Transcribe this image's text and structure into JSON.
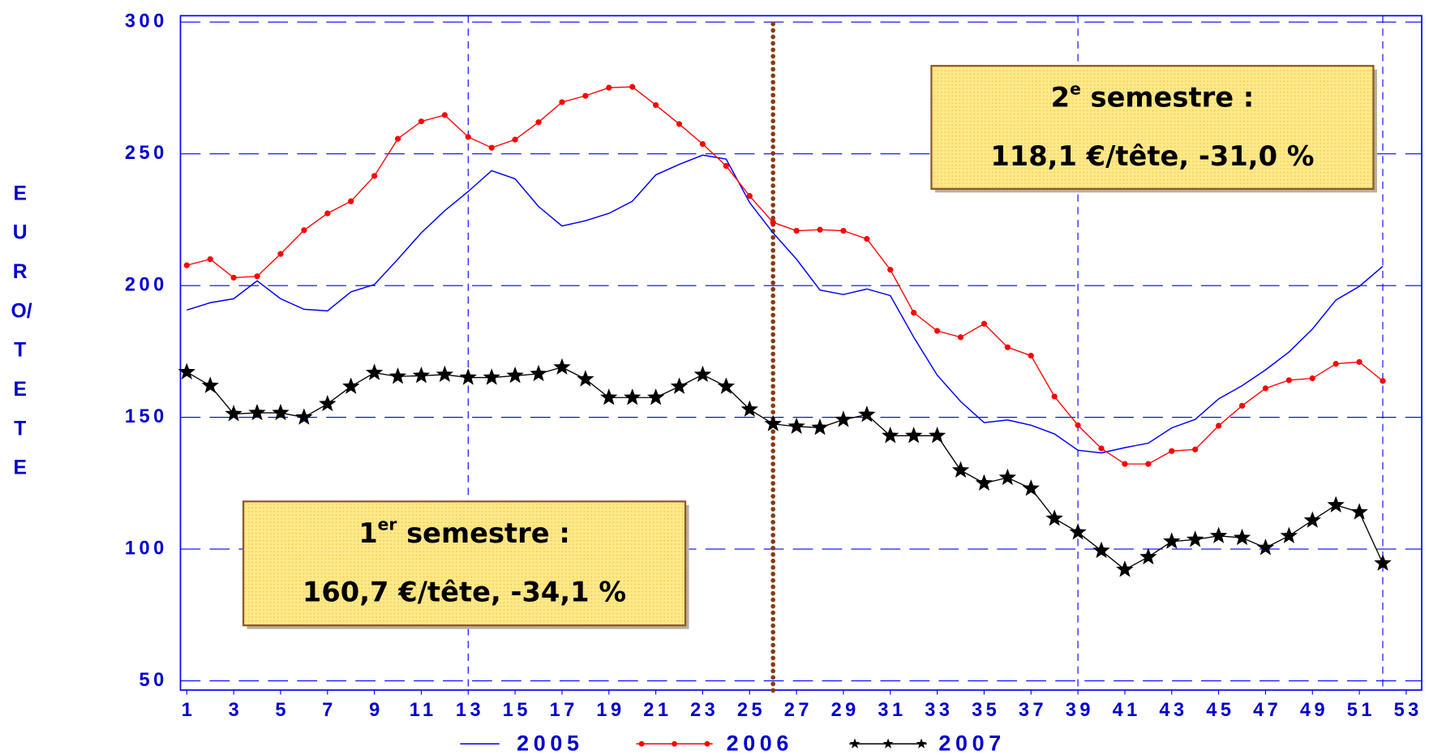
{
  "chart_data": {
    "type": "line",
    "y_label": "EURO/TETE",
    "x": [
      1,
      2,
      3,
      4,
      5,
      6,
      7,
      8,
      9,
      10,
      11,
      12,
      13,
      14,
      15,
      16,
      17,
      18,
      19,
      20,
      21,
      22,
      23,
      24,
      25,
      26,
      27,
      28,
      29,
      30,
      31,
      32,
      33,
      34,
      35,
      36,
      37,
      38,
      39,
      40,
      41,
      42,
      43,
      44,
      45,
      46,
      47,
      48,
      49,
      50,
      51,
      52
    ],
    "series": [
      {
        "name": "2005",
        "color": "#0000ff",
        "marker": "none",
        "values": [
          190.7,
          193.5,
          195,
          201.8,
          195,
          191,
          190.4,
          197.6,
          200.4,
          210,
          220,
          228.4,
          235.7,
          243.6,
          240.5,
          230,
          222.6,
          224.6,
          227.4,
          232,
          242,
          246,
          249.5,
          248,
          231.5,
          220,
          210,
          198.3,
          196.6,
          198.7,
          196.2,
          180.4,
          166,
          156,
          148,
          149,
          147,
          143.7,
          137.5,
          136.5,
          138.5,
          140.2,
          146,
          149.2,
          157,
          162,
          168,
          174.8,
          183.5,
          194.5,
          199.7,
          207.3
        ]
      },
      {
        "name": "2006",
        "color": "#ff0000",
        "marker": "dot",
        "values": [
          207.7,
          210,
          203,
          203.5,
          212,
          221,
          227.4,
          232,
          241.6,
          255.7,
          262.3,
          264.7,
          256.4,
          252.3,
          255.4,
          262,
          269.6,
          272,
          275.1,
          275.4,
          268.5,
          261.3,
          253.7,
          245.4,
          234,
          224,
          220.8,
          221.2,
          220.8,
          217.7,
          206,
          189.7,
          182.8,
          180.4,
          185.5,
          176.6,
          173.4,
          157.9,
          147,
          138.2,
          132.3,
          132.3,
          137.2,
          137.8,
          146.8,
          154.4,
          161,
          164.1,
          164.8,
          170.3,
          171,
          163.8
        ]
      },
      {
        "name": "2007",
        "color": "#000000",
        "marker": "star",
        "values": [
          167.2,
          162,
          151.3,
          151.7,
          151.7,
          150,
          155.1,
          161.7,
          166.9,
          165.5,
          165.8,
          166.2,
          165.1,
          165.1,
          165.8,
          166.5,
          169,
          164.5,
          157.5,
          157.5,
          157.5,
          161.7,
          166.2,
          161.7,
          153,
          147.5,
          146.5,
          146.1,
          149.1,
          151,
          143,
          143,
          143,
          129.9,
          125,
          127.1,
          123,
          111.6,
          106.4,
          99.4,
          92.2,
          97,
          102.9,
          103.6,
          105,
          104.3,
          100.5,
          105,
          110.9,
          116.7,
          114,
          94.6
        ]
      }
    ],
    "xlim": [
      0.73,
      53.66
    ],
    "xticks": [
      1,
      3,
      5,
      7,
      9,
      11,
      13,
      15,
      17,
      19,
      21,
      23,
      25,
      27,
      29,
      31,
      33,
      35,
      37,
      39,
      41,
      43,
      45,
      47,
      49,
      51,
      53
    ],
    "ylim": [
      46.5,
      302.4
    ],
    "yticks": [
      50,
      100,
      150,
      200,
      250,
      300
    ],
    "grid": true,
    "x_grid": [
      13,
      39,
      52
    ],
    "vline": {
      "x": 26,
      "color": "#8b3a0f"
    },
    "legend": "bottom",
    "annotations": [
      {
        "ordinal": "1",
        "sup": "er",
        "label": " semestre :",
        "text": "160,7 €/tête, -34,1 %"
      },
      {
        "ordinal": "2",
        "sup": "e",
        "label": " semestre :",
        "text": "118,1 €/tête, -31,0 %"
      }
    ]
  }
}
